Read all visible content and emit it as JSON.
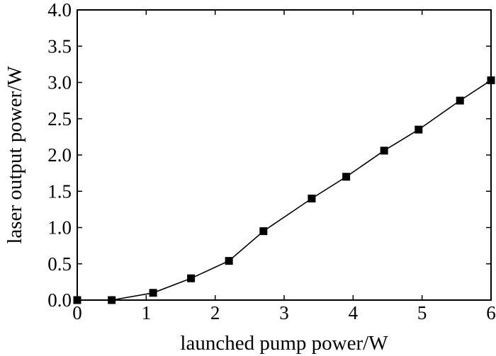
{
  "chart_data": {
    "type": "line",
    "title": "",
    "xlabel": "launched pump power/W",
    "ylabel": "laser output power/W",
    "xlim": [
      0,
      6
    ],
    "ylim": [
      0,
      4
    ],
    "x_ticks": [
      "0",
      "1",
      "2",
      "3",
      "4",
      "5",
      "6"
    ],
    "y_ticks": [
      "0.0",
      "0.5",
      "1.0",
      "1.5",
      "2.0",
      "2.5",
      "3.0",
      "3.5",
      "4.0"
    ],
    "grid": false,
    "marker": "square",
    "line_color": "#000000",
    "series": [
      {
        "x": [
          0,
          0.5,
          1.1,
          1.65,
          2.2,
          2.7,
          3.4,
          3.9,
          4.45,
          4.95,
          5.55,
          6.0
        ],
        "y": [
          0,
          0,
          0.1,
          0.3,
          0.54,
          0.95,
          1.4,
          1.7,
          2.06,
          2.35,
          2.75,
          3.03
        ]
      }
    ]
  }
}
